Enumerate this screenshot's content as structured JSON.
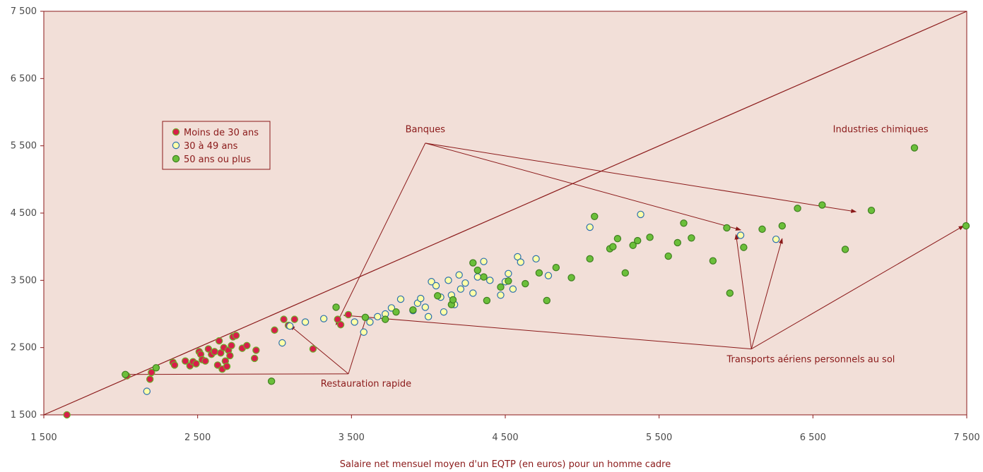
{
  "chart_data": {
    "type": "scatter",
    "title": "",
    "xlabel": "Salaire net mensuel moyen d'un EQTP (en euros) pour un homme cadre",
    "ylabel": "",
    "xlim": [
      1500,
      7500
    ],
    "ylim": [
      1500,
      7500
    ],
    "x_ticks": [
      "1 500",
      "2 500",
      "3 500",
      "4 500",
      "5 500",
      "6 500",
      "7 500"
    ],
    "y_ticks": [
      "1 500",
      "2 500",
      "3 500",
      "4 500",
      "5 500",
      "6 500",
      "7 500"
    ],
    "grid": false,
    "legend_position": "upper-left",
    "background_color": "#F2DFD8",
    "frame_color": "#8B1A1A",
    "annotation_color": "#8B1A1A",
    "series": [
      {
        "name": "Moins de 30 ans",
        "fill": "#D81E4A",
        "stroke": "#6BAF2A",
        "points": [
          [
            1650,
            1500
          ],
          [
            2040,
            2080
          ],
          [
            2200,
            2130
          ],
          [
            2190,
            2030
          ],
          [
            2340,
            2280
          ],
          [
            2350,
            2240
          ],
          [
            2420,
            2300
          ],
          [
            2450,
            2230
          ],
          [
            2470,
            2290
          ],
          [
            2490,
            2260
          ],
          [
            2510,
            2440
          ],
          [
            2520,
            2400
          ],
          [
            2530,
            2320
          ],
          [
            2550,
            2300
          ],
          [
            2570,
            2480
          ],
          [
            2590,
            2400
          ],
          [
            2610,
            2440
          ],
          [
            2630,
            2240
          ],
          [
            2640,
            2600
          ],
          [
            2650,
            2420
          ],
          [
            2660,
            2180
          ],
          [
            2670,
            2500
          ],
          [
            2680,
            2300
          ],
          [
            2690,
            2220
          ],
          [
            2700,
            2460
          ],
          [
            2710,
            2380
          ],
          [
            2720,
            2530
          ],
          [
            2730,
            2660
          ],
          [
            2750,
            2680
          ],
          [
            2790,
            2490
          ],
          [
            2820,
            2530
          ],
          [
            2870,
            2340
          ],
          [
            2880,
            2460
          ],
          [
            3000,
            2760
          ],
          [
            3060,
            2920
          ],
          [
            3090,
            2830
          ],
          [
            3130,
            2920
          ],
          [
            3250,
            2480
          ],
          [
            3410,
            2920
          ],
          [
            3430,
            2840
          ],
          [
            3480,
            2990
          ]
        ]
      },
      {
        "name": "30 à 49 ans",
        "fill": "#FFFFA8",
        "stroke": "#2B6FAF",
        "points": [
          [
            2170,
            1850
          ],
          [
            3050,
            2570
          ],
          [
            3100,
            2820
          ],
          [
            3200,
            2880
          ],
          [
            3320,
            2930
          ],
          [
            3520,
            2880
          ],
          [
            3580,
            2730
          ],
          [
            3620,
            2880
          ],
          [
            3670,
            2960
          ],
          [
            3720,
            3000
          ],
          [
            3760,
            3090
          ],
          [
            3820,
            3220
          ],
          [
            3900,
            3050
          ],
          [
            3930,
            3160
          ],
          [
            3950,
            3230
          ],
          [
            3980,
            3100
          ],
          [
            4000,
            2960
          ],
          [
            4020,
            3480
          ],
          [
            4050,
            3420
          ],
          [
            4080,
            3250
          ],
          [
            4100,
            3030
          ],
          [
            4130,
            3500
          ],
          [
            4150,
            3280
          ],
          [
            4170,
            3140
          ],
          [
            4200,
            3580
          ],
          [
            4210,
            3370
          ],
          [
            4240,
            3460
          ],
          [
            4290,
            3310
          ],
          [
            4320,
            3550
          ],
          [
            4360,
            3780
          ],
          [
            4400,
            3500
          ],
          [
            4470,
            3280
          ],
          [
            4500,
            3480
          ],
          [
            4520,
            3600
          ],
          [
            4550,
            3370
          ],
          [
            4580,
            3850
          ],
          [
            4600,
            3770
          ],
          [
            4700,
            3820
          ],
          [
            4780,
            3570
          ],
          [
            5050,
            4290
          ],
          [
            5380,
            4480
          ],
          [
            6030,
            4170
          ],
          [
            6260,
            4110
          ]
        ]
      },
      {
        "name": "50 ans ou plus",
        "fill": "#6BBF3A",
        "stroke": "#3F7F1F",
        "points": [
          [
            2030,
            2100
          ],
          [
            2230,
            2200
          ],
          [
            2980,
            2000
          ],
          [
            3400,
            3100
          ],
          [
            3590,
            2950
          ],
          [
            3720,
            2920
          ],
          [
            3790,
            3030
          ],
          [
            3900,
            3060
          ],
          [
            4060,
            3270
          ],
          [
            4150,
            3140
          ],
          [
            4160,
            3210
          ],
          [
            4290,
            3760
          ],
          [
            4320,
            3650
          ],
          [
            4360,
            3550
          ],
          [
            4380,
            3200
          ],
          [
            4470,
            3400
          ],
          [
            4520,
            3490
          ],
          [
            4630,
            3450
          ],
          [
            4720,
            3610
          ],
          [
            4770,
            3200
          ],
          [
            4830,
            3690
          ],
          [
            4930,
            3540
          ],
          [
            5050,
            3820
          ],
          [
            5080,
            4450
          ],
          [
            5180,
            3970
          ],
          [
            5200,
            4000
          ],
          [
            5230,
            4120
          ],
          [
            5280,
            3610
          ],
          [
            5330,
            4020
          ],
          [
            5360,
            4090
          ],
          [
            5440,
            4140
          ],
          [
            5560,
            3860
          ],
          [
            5620,
            4060
          ],
          [
            5660,
            4350
          ],
          [
            5710,
            4130
          ],
          [
            5850,
            3790
          ],
          [
            5940,
            4280
          ],
          [
            5960,
            3310
          ],
          [
            6050,
            3990
          ],
          [
            6170,
            4260
          ],
          [
            6300,
            4310
          ],
          [
            6400,
            4570
          ],
          [
            6560,
            4620
          ],
          [
            6710,
            3960
          ],
          [
            6880,
            4540
          ],
          [
            7160,
            5470
          ],
          [
            7620,
            4310
          ]
        ]
      }
    ],
    "diagonal": [
      [
        1500,
        1500
      ],
      [
        7500,
        7500
      ]
    ],
    "annotations": [
      {
        "text": "Banques",
        "label_at": [
          3980,
          5700
        ],
        "anchor": "middle",
        "from": [
          3980,
          5540
        ],
        "targets": [
          [
            3400,
            2840
          ],
          [
            6780,
            4520
          ],
          [
            6030,
            4250
          ]
        ]
      },
      {
        "text": "Industries chimiques",
        "label_at": [
          6940,
          5700
        ],
        "anchor": "middle",
        "from": null,
        "targets": []
      },
      {
        "text": "Restauration rapide",
        "label_at": [
          3300,
          1920
        ],
        "anchor": "start",
        "from": [
          3480,
          2110
        ],
        "targets": [
          [
            2010,
            2100
          ],
          [
            3100,
            2830
          ],
          [
            3600,
            2980
          ]
        ]
      },
      {
        "text": "Transports aériens personnels au sol",
        "label_at": [
          5940,
          2280
        ],
        "anchor": "start",
        "from": [
          6100,
          2480
        ],
        "targets": [
          [
            3450,
            2980
          ],
          [
            6000,
            4180
          ],
          [
            6300,
            4120
          ],
          [
            7480,
            4310
          ]
        ]
      }
    ]
  }
}
